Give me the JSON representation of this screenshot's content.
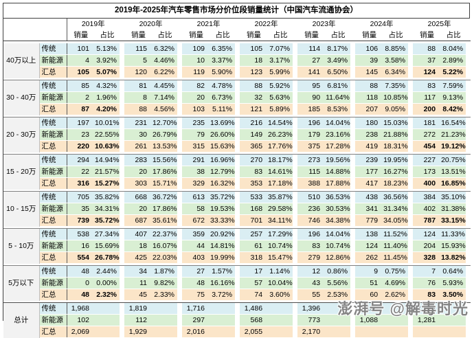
{
  "title": "2019年-2025年汽车零售市场分价位段销量统计（中国汽车流通协会）",
  "header": {
    "sales": "销量",
    "share": "占比"
  },
  "watermark": "澎湃号 @解毒时光",
  "colors": {
    "traditional_row": "#daeef3",
    "new_energy_row": "#d9efd3",
    "subtotal_row": "#fbe5c8",
    "segment_cell": "#f2f2f2",
    "border_dark": "#404040",
    "block_line": "#808080"
  },
  "chart_data": {
    "type": "table",
    "title": "2019年-2025年汽车零售市场分价位段销量统计（中国汽车流通协会）",
    "years": [
      "2019年",
      "2020年",
      "2021年",
      "2022年",
      "2023年",
      "2024年",
      "2025年"
    ],
    "columns_per_year": [
      "销量",
      "占比"
    ],
    "segments": [
      {
        "label": "40万以上",
        "rows": [
          {
            "label": "传统",
            "sales": [
              "101",
              "115",
              "109",
              "105",
              "114",
              "106",
              "88"
            ],
            "share": [
              "5.13%",
              "6.32%",
              "6.35%",
              "7.07%",
              "8.17%",
              "8.85%",
              "8.04%"
            ]
          },
          {
            "label": "新能源",
            "sales": [
              "4",
              "5",
              "10",
              "18",
              "27",
              "39",
              "37"
            ],
            "share": [
              "3.92%",
              "4.46%",
              "3.37%",
              "3.17%",
              "3.49%",
              "3.58%",
              "2.89%"
            ]
          },
          {
            "label": "汇总",
            "sales": [
              "105",
              "120",
              "119",
              "123",
              "141",
              "145",
              "124"
            ],
            "share": [
              "5.07%",
              "6.22%",
              "5.90%",
              "5.99%",
              "6.50%",
              "6.34%",
              "5.22%"
            ]
          }
        ]
      },
      {
        "label": "30 - 40万",
        "rows": [
          {
            "label": "传统",
            "sales": [
              "85",
              "81",
              "82",
              "88",
              "95",
              "88",
              "83"
            ],
            "share": [
              "4.32%",
              "4.45%",
              "4.78%",
              "5.92%",
              "6.81%",
              "7.35%",
              "7.59%"
            ]
          },
          {
            "label": "新能源",
            "sales": [
              "2",
              "8",
              "20",
              "32",
              "90",
              "118",
              "117"
            ],
            "share": [
              "1.96%",
              "7.14%",
              "6.73%",
              "5.63%",
              "11.64%",
              "10.85%",
              "9.13%"
            ]
          },
          {
            "label": "汇总",
            "sales": [
              "87",
              "88",
              "103",
              "121",
              "185",
              "207",
              "200"
            ],
            "share": [
              "4.20%",
              "4.56%",
              "5.11%",
              "5.89%",
              "8.53%",
              "9.05%",
              "8.42%"
            ]
          }
        ]
      },
      {
        "label": "20 - 30万",
        "rows": [
          {
            "label": "传统",
            "sales": [
              "197",
              "231",
              "235",
              "216",
              "196",
              "180",
              "181"
            ],
            "share": [
              "10.01%",
              "12.70%",
              "13.69%",
              "14.54%",
              "14.04%",
              "15.03%",
              "16.54%"
            ]
          },
          {
            "label": "新能源",
            "sales": [
              "23",
              "30",
              "79",
              "149",
              "179",
              "238",
              "272"
            ],
            "share": [
              "22.55%",
              "26.79%",
              "26.60%",
              "26.23%",
              "23.16%",
              "21.88%",
              "21.23%"
            ]
          },
          {
            "label": "汇总",
            "sales": [
              "220",
              "261",
              "315",
              "365",
              "375",
              "419",
              "454"
            ],
            "share": [
              "10.63%",
              "13.53%",
              "15.63%",
              "17.76%",
              "17.28%",
              "18.31%",
              "19.12%"
            ]
          }
        ]
      },
      {
        "label": "15 - 20万",
        "rows": [
          {
            "label": "传统",
            "sales": [
              "294",
              "283",
              "291",
              "270",
              "273",
              "239",
              "227"
            ],
            "share": [
              "14.94%",
              "15.56%",
              "16.96%",
              "18.17%",
              "19.56%",
              "19.95%",
              "20.75%"
            ]
          },
          {
            "label": "新能源",
            "sales": [
              "22",
              "20",
              "38",
              "83",
              "115",
              "177",
              "173"
            ],
            "share": [
              "21.57%",
              "17.86%",
              "12.79%",
              "14.61%",
              "14.88%",
              "16.27%",
              "13.51%"
            ]
          },
          {
            "label": "汇总",
            "sales": [
              "316",
              "303",
              "329",
              "353",
              "388",
              "417",
              "400"
            ],
            "share": [
              "15.27%",
              "15.71%",
              "16.32%",
              "17.18%",
              "17.88%",
              "18.23%",
              "16.85%"
            ]
          }
        ]
      },
      {
        "label": "10 - 15万",
        "rows": [
          {
            "label": "传统",
            "sales": [
              "705",
              "668",
              "613",
              "533",
              "510",
              "438",
              "384"
            ],
            "share": [
              "35.82%",
              "36.72%",
              "35.72%",
              "35.87%",
              "36.53%",
              "36.56%",
              "35.10%"
            ]
          },
          {
            "label": "新能源",
            "sales": [
              "35",
              "20",
              "58",
              "168",
              "236",
              "341",
              "402"
            ],
            "share": [
              "34.31%",
              "17.86%",
              "19.53%",
              "29.58%",
              "30.53%",
              "31.34%",
              "31.38%"
            ]
          },
          {
            "label": "汇总",
            "sales": [
              "739",
              "687",
              "672",
              "701",
              "746",
              "779",
              "787"
            ],
            "share": [
              "35.72%",
              "35.61%",
              "33.33%",
              "34.11%",
              "34.38%",
              "34.05%",
              "33.15%"
            ]
          }
        ]
      },
      {
        "label": "5 - 10万",
        "rows": [
          {
            "label": "传统",
            "sales": [
              "538",
              "407",
              "359",
              "257",
              "196",
              "138",
              "124"
            ],
            "share": [
              "27.34%",
              "22.37%",
              "20.92%",
              "17.29%",
              "14.04%",
              "11.52%",
              "11.33%"
            ]
          },
          {
            "label": "新能源",
            "sales": [
              "16",
              "18",
              "44",
              "61",
              "83",
              "124",
              "204"
            ],
            "share": [
              "15.69%",
              "16.07%",
              "14.81%",
              "10.74%",
              "10.74%",
              "11.40%",
              "15.93%"
            ]
          },
          {
            "label": "汇总",
            "sales": [
              "554",
              "425",
              "403",
              "318",
              "279",
              "262",
              "328"
            ],
            "share": [
              "26.78%",
              "22.03%",
              "19.99%",
              "15.47%",
              "12.86%",
              "11.45%",
              "13.82%"
            ]
          }
        ]
      },
      {
        "label": "5万以下",
        "rows": [
          {
            "label": "传统",
            "sales": [
              "48",
              "34",
              "27",
              "17",
              "12",
              "9",
              "7"
            ],
            "share": [
              "2.44%",
              "1.87%",
              "1.57%",
              "1.14%",
              "0.86%",
              "0.75%",
              "0.64%"
            ]
          },
          {
            "label": "新能源",
            "sales": [
              "0",
              "11",
              "48",
              "57",
              "43",
              "51",
              "76"
            ],
            "share": [
              "0.00%",
              "9.82%",
              "16.16%",
              "10.04%",
              "5.56%",
              "4.69%",
              "5.93%"
            ]
          },
          {
            "label": "汇总",
            "sales": [
              "48",
              "45",
              "75",
              "74",
              "55",
              "60",
              "83"
            ],
            "share": [
              "2.32%",
              "2.33%",
              "3.72%",
              "3.60%",
              "2.53%",
              "2.62%",
              "3.50%"
            ]
          }
        ]
      },
      {
        "label": "总计",
        "grand": true,
        "rows": [
          {
            "label": "传统",
            "sales": [
              "1,968",
              "1,819",
              "1,716",
              "1,486",
              "1,396",
              "1,198",
              "1,094"
            ],
            "share": [
              "",
              "",
              "",
              "",
              "",
              "",
              ""
            ]
          },
          {
            "label": "新能源",
            "sales": [
              "102",
              "112",
              "297",
              "568",
              "773",
              "1,088",
              "1,281"
            ],
            "share": [
              "",
              "",
              "",
              "",
              "",
              "",
              ""
            ]
          },
          {
            "label": "汇总",
            "sales": [
              "2,069",
              "1,929",
              "2,016",
              "2,055",
              "2,170",
              "",
              ""
            ],
            "share": [
              "",
              "",
              "",
              "",
              "",
              "",
              ""
            ]
          }
        ]
      }
    ]
  }
}
